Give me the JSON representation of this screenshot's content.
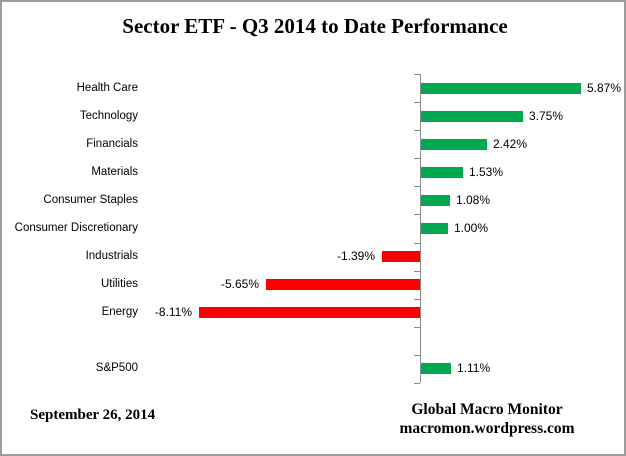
{
  "title": "Sector ETF - Q3 2014 to Date Performance",
  "chart_data": {
    "type": "bar",
    "orientation": "horizontal",
    "title": "Sector ETF - Q3 2014 to Date Performance",
    "xlabel": "",
    "ylabel": "",
    "value_unit": "%",
    "grid": false,
    "legend": false,
    "value_axis_labels_visible": false,
    "zero_axis_line": true,
    "rows": [
      {
        "category": "Health Care",
        "value": 5.87,
        "label": "5.87%"
      },
      {
        "category": "Technology",
        "value": 3.75,
        "label": "3.75%"
      },
      {
        "category": "Financials",
        "value": 2.42,
        "label": "2.42%"
      },
      {
        "category": "Materials",
        "value": 1.53,
        "label": "1.53%"
      },
      {
        "category": "Consumer Staples",
        "value": 1.08,
        "label": "1.08%"
      },
      {
        "category": "Consumer Discretionary",
        "value": 1.0,
        "label": "1.00%"
      },
      {
        "category": "Industrials",
        "value": -1.39,
        "label": "-1.39%"
      },
      {
        "category": "Utilities",
        "value": -5.65,
        "label": "-5.65%"
      },
      {
        "category": "Energy",
        "value": -8.11,
        "label": "-8.11%"
      },
      {
        "category": "",
        "value": null,
        "label": ""
      },
      {
        "category": "S&P500",
        "value": 1.11,
        "label": "1.11%"
      }
    ]
  },
  "colors": {
    "positive_bar": "#00A850",
    "negative_bar": "#FF0000",
    "axis": "#8C8C8C"
  },
  "footer": {
    "date": "September 26, 2014",
    "brand_line1": "Global Macro Monitor",
    "brand_line2": "macromon.wordpress.com"
  }
}
